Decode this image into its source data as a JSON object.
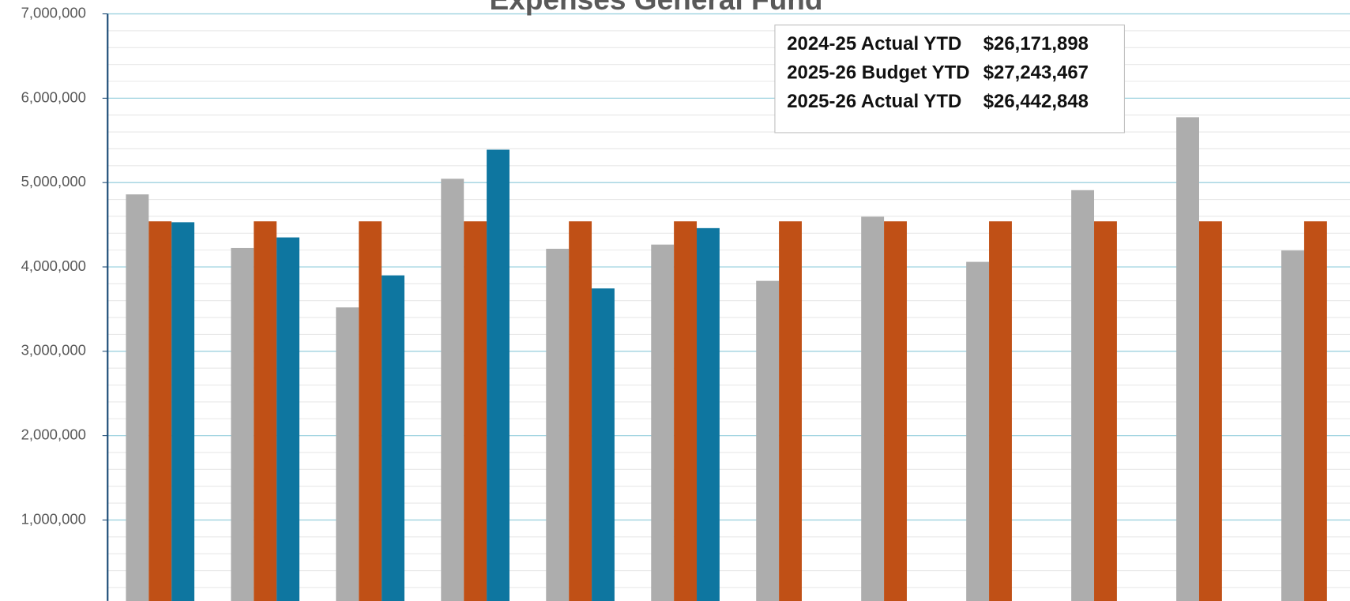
{
  "chart_data": {
    "type": "bar",
    "title": "Expenses General Fund",
    "categories": [
      null,
      null,
      null,
      null,
      null,
      null,
      null,
      null,
      null,
      null,
      null,
      null
    ],
    "series": [
      {
        "color": "#adadad",
        "values": [
          4860000,
          4225000,
          3520000,
          5045000,
          4215000,
          4265000,
          3835000,
          4595000,
          4060000,
          4910000,
          5775000,
          4195000
        ]
      },
      {
        "color": "#c05016",
        "values": [
          4540578,
          4540578,
          4540578,
          4540578,
          4540578,
          4540578,
          4540578,
          4540578,
          4540578,
          4540578,
          4540578,
          4540578
        ]
      },
      {
        "color": "#0e76a0",
        "values": [
          4530000,
          4350000,
          3900000,
          5390000,
          3745000,
          4460000,
          null,
          null,
          null,
          null,
          null,
          null
        ]
      }
    ],
    "ylim": [
      0,
      7000000
    ],
    "yticks": [
      {
        "value": 1000000,
        "label": "1,000,000"
      },
      {
        "value": 2000000,
        "label": "2,000,000"
      },
      {
        "value": 3000000,
        "label": "3,000,000"
      },
      {
        "value": 4000000,
        "label": "4,000,000"
      },
      {
        "value": 5000000,
        "label": "5,000,000"
      },
      {
        "value": 6000000,
        "label": "6,000,000"
      },
      {
        "value": 7000000,
        "label": "7,000,000"
      }
    ],
    "grid": true,
    "annotations": [
      {
        "label": "2024-25 Actual YTD",
        "amount": "$26,171,898"
      },
      {
        "label": "2025-26 Budget YTD",
        "amount": "$27,243,467"
      },
      {
        "label": "2025-26 Actual YTD",
        "amount": "$26,442,848"
      }
    ]
  }
}
